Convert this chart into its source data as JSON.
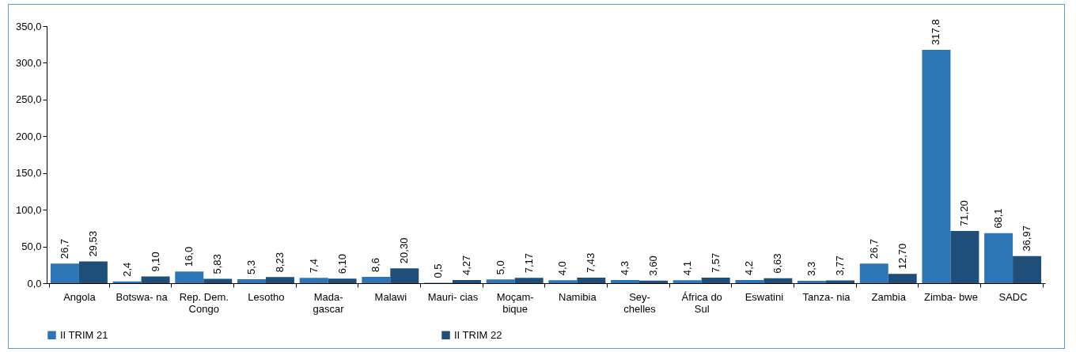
{
  "chart_data": {
    "type": "bar",
    "categories": [
      "Angola",
      "Botswa- na",
      "Rep. Dem. Congo",
      "Lesotho",
      "Mada- gascar",
      "Malawi",
      "Mauri- cias",
      "Moçam- bique",
      "Namibia",
      "Sey- chelles",
      "África do Sul",
      "Eswatini",
      "Tanza- nia",
      "Zambia",
      "Zimba- bwe",
      "SADC"
    ],
    "series": [
      {
        "name": "II TRIM 21",
        "color": "#2e75b6",
        "values": [
          26.7,
          2.4,
          16.0,
          5.3,
          7.4,
          8.6,
          0.5,
          5.0,
          4.0,
          4.3,
          4.1,
          4.2,
          3.3,
          26.7,
          317.8,
          68.1
        ],
        "value_labels": [
          "26,7",
          "2,4",
          "16,0",
          "5,3",
          "7,4",
          "8,6",
          "0,5",
          "5,0",
          "4,0",
          "4,3",
          "4,1",
          "4,2",
          "3,3",
          "26,7",
          "317,8",
          "68,1"
        ]
      },
      {
        "name": "II TRIM 22",
        "color": "#1f4e79",
        "values": [
          29.53,
          9.1,
          5.83,
          8.23,
          6.1,
          20.3,
          4.27,
          7.17,
          7.43,
          3.6,
          7.57,
          6.63,
          3.77,
          12.7,
          71.2,
          36.97
        ],
        "value_labels": [
          "29,53",
          "9,10",
          "5,83",
          "8,23",
          "6,10",
          "20,30",
          "4,27",
          "7,17",
          "7,43",
          "3,60",
          "7,57",
          "6,63",
          "3,77",
          "12,70",
          "71,20",
          "36,97"
        ]
      }
    ],
    "ylim": [
      0,
      350
    ],
    "yticks": [
      {
        "value": 0,
        "label": "0,0"
      },
      {
        "value": 50,
        "label": "50,0"
      },
      {
        "value": 100,
        "label": "100,0"
      },
      {
        "value": 150,
        "label": "150,0"
      },
      {
        "value": 200,
        "label": "200,0"
      },
      {
        "value": 250,
        "label": "250,0"
      },
      {
        "value": 300,
        "label": "300,0"
      },
      {
        "value": 350,
        "label": "350,0"
      }
    ],
    "grid": false,
    "legend": "bottom"
  }
}
